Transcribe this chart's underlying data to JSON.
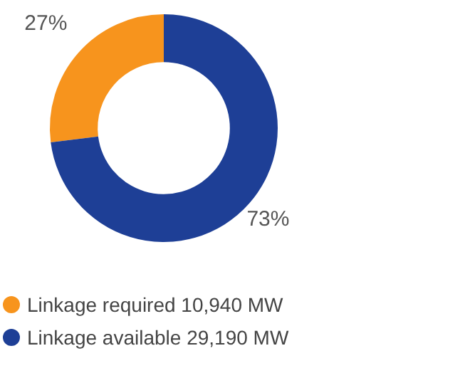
{
  "chart_data": {
    "type": "donut",
    "categories": [
      "Linkage required 10,940 MW",
      "Linkage available 29,190 MW"
    ],
    "values": [
      27,
      73
    ],
    "colors": [
      "#f7941d",
      "#1e3f96"
    ],
    "value_labels": [
      "27%",
      "73%"
    ],
    "legend": "bottom left"
  }
}
